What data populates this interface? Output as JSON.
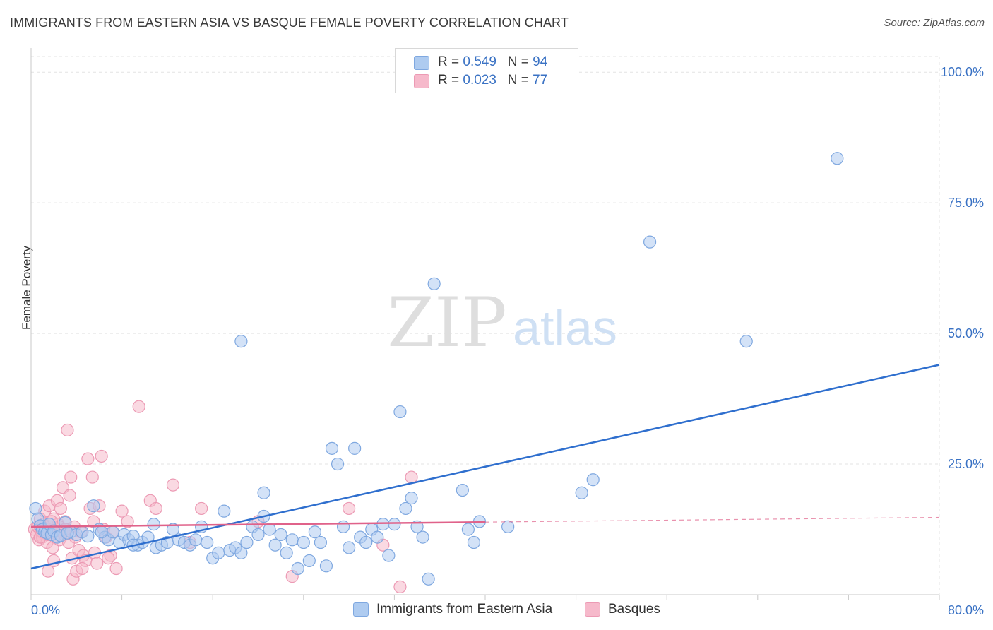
{
  "title": "IMMIGRANTS FROM EASTERN ASIA VS BASQUE FEMALE POVERTY CORRELATION CHART",
  "source": "Source: ZipAtlas.com",
  "watermark": {
    "zip": "ZIP",
    "atlas": "atlas"
  },
  "legend": {
    "rows": [
      {
        "r_label": "R = ",
        "r_value": "0.549",
        "n_label": "N = ",
        "n_value": "94"
      },
      {
        "r_label": "R = ",
        "r_value": "0.023",
        "n_label": "N = ",
        "n_value": "77"
      }
    ]
  },
  "bottom_legend": [
    "Immigrants from Eastern Asia",
    "Basques"
  ],
  "colors": {
    "blue_fill": "#aecbf0",
    "blue_stroke": "#7fa8e0",
    "blue_line": "#2f6fce",
    "pink_fill": "#f6b9cb",
    "pink_stroke": "#ec9ab4",
    "pink_line": "#e0628a",
    "tick_text": "#3a72c4",
    "grid": "#e3e3e3"
  },
  "chart_data": {
    "type": "scatter",
    "title": "IMMIGRANTS FROM EASTERN ASIA VS BASQUE FEMALE POVERTY CORRELATION CHART",
    "xlabel": "",
    "ylabel": "Female Poverty",
    "xlim": [
      0,
      80
    ],
    "ylim": [
      0,
      103
    ],
    "x_tick_labels": [
      "0.0%",
      "80.0%"
    ],
    "y_ticks": [
      25,
      50,
      75,
      100
    ],
    "y_tick_labels": [
      "25.0%",
      "50.0%",
      "75.0%",
      "100.0%"
    ],
    "grid": true,
    "legend_position": "top-center",
    "series": [
      {
        "name": "Immigrants from Eastern Asia",
        "r": 0.549,
        "n": 94,
        "trend": {
          "x": [
            0,
            80
          ],
          "y": [
            5.0,
            44.0
          ]
        },
        "points": [
          [
            0.4,
            16.5
          ],
          [
            0.6,
            14.5
          ],
          [
            0.8,
            13.2
          ],
          [
            1.0,
            12.5
          ],
          [
            1.2,
            12.0
          ],
          [
            1.4,
            11.8
          ],
          [
            1.6,
            13.5
          ],
          [
            1.8,
            11.5
          ],
          [
            2.0,
            12.2
          ],
          [
            2.3,
            11.0
          ],
          [
            2.6,
            11.3
          ],
          [
            3.0,
            13.8
          ],
          [
            3.5,
            12.0
          ],
          [
            4.0,
            11.5
          ],
          [
            4.5,
            12.0
          ],
          [
            5.0,
            11.2
          ],
          [
            5.5,
            17.0
          ],
          [
            6.0,
            12.5
          ],
          [
            6.5,
            11.0
          ],
          [
            6.8,
            10.5
          ],
          [
            7.2,
            12.0
          ],
          [
            7.8,
            10.0
          ],
          [
            8.2,
            11.5
          ],
          [
            8.6,
            10.5
          ],
          [
            9.0,
            11.2
          ],
          [
            9.4,
            9.5
          ],
          [
            9.8,
            10.0
          ],
          [
            10.3,
            11.0
          ],
          [
            10.8,
            13.5
          ],
          [
            11.0,
            9.0
          ],
          [
            11.5,
            9.5
          ],
          [
            12.0,
            10.0
          ],
          [
            12.5,
            12.5
          ],
          [
            13.0,
            10.5
          ],
          [
            13.5,
            10.0
          ],
          [
            14.0,
            9.5
          ],
          [
            14.5,
            10.5
          ],
          [
            15.0,
            13.0
          ],
          [
            15.5,
            10.0
          ],
          [
            16.0,
            7.0
          ],
          [
            16.5,
            8.0
          ],
          [
            17.0,
            16.0
          ],
          [
            17.5,
            8.5
          ],
          [
            18.0,
            9.0
          ],
          [
            18.5,
            8.0
          ],
          [
            19.0,
            10.0
          ],
          [
            19.5,
            13.0
          ],
          [
            20.0,
            11.5
          ],
          [
            20.5,
            15.0
          ],
          [
            21.0,
            12.5
          ],
          [
            21.5,
            9.5
          ],
          [
            22.0,
            11.5
          ],
          [
            22.5,
            8.0
          ],
          [
            23.0,
            10.5
          ],
          [
            23.5,
            5.0
          ],
          [
            24.0,
            10.0
          ],
          [
            24.5,
            6.5
          ],
          [
            25.0,
            12.0
          ],
          [
            25.5,
            10.0
          ],
          [
            26.0,
            5.5
          ],
          [
            26.5,
            28.0
          ],
          [
            27.0,
            25.0
          ],
          [
            27.5,
            13.0
          ],
          [
            28.0,
            9.0
          ],
          [
            28.5,
            28.0
          ],
          [
            29.0,
            11.0
          ],
          [
            29.5,
            10.0
          ],
          [
            30.0,
            12.5
          ],
          [
            30.5,
            11.0
          ],
          [
            31.0,
            13.5
          ],
          [
            31.5,
            7.5
          ],
          [
            32.0,
            13.5
          ],
          [
            32.5,
            35.0
          ],
          [
            33.0,
            16.5
          ],
          [
            33.5,
            18.5
          ],
          [
            34.0,
            13.0
          ],
          [
            34.5,
            11.0
          ],
          [
            35.0,
            3.0
          ],
          [
            35.5,
            59.5
          ],
          [
            38.0,
            20.0
          ],
          [
            38.5,
            12.5
          ],
          [
            39.0,
            10.0
          ],
          [
            39.5,
            14.0
          ],
          [
            42.0,
            13.0
          ],
          [
            48.5,
            19.5
          ],
          [
            49.5,
            22.0
          ],
          [
            18.5,
            48.5
          ],
          [
            54.5,
            67.5
          ],
          [
            63.0,
            48.5
          ],
          [
            71.0,
            83.5
          ],
          [
            20.5,
            19.5
          ],
          [
            9.0,
            9.5
          ],
          [
            6.2,
            12.0
          ],
          [
            3.2,
            11.8
          ]
        ]
      },
      {
        "name": "Basques",
        "r": 0.023,
        "n": 77,
        "trend": {
          "x": [
            0,
            40
          ],
          "y": [
            13.0,
            13.9
          ]
        },
        "trend_dashed": {
          "x": [
            40,
            80
          ],
          "y": [
            13.9,
            14.8
          ]
        },
        "points": [
          [
            0.3,
            12.5
          ],
          [
            0.5,
            11.5
          ],
          [
            0.6,
            13.0
          ],
          [
            0.7,
            10.5
          ],
          [
            0.8,
            14.5
          ],
          [
            0.9,
            12.0
          ],
          [
            1.0,
            11.0
          ],
          [
            1.1,
            13.5
          ],
          [
            1.2,
            16.0
          ],
          [
            1.3,
            12.5
          ],
          [
            1.4,
            10.0
          ],
          [
            1.5,
            11.5
          ],
          [
            1.6,
            17.0
          ],
          [
            1.7,
            13.0
          ],
          [
            1.8,
            12.0
          ],
          [
            1.9,
            9.0
          ],
          [
            2.0,
            14.5
          ],
          [
            2.1,
            11.0
          ],
          [
            2.2,
            12.5
          ],
          [
            2.3,
            18.0
          ],
          [
            2.4,
            13.5
          ],
          [
            2.5,
            10.5
          ],
          [
            2.6,
            16.5
          ],
          [
            2.7,
            12.0
          ],
          [
            2.8,
            20.5
          ],
          [
            2.9,
            11.5
          ],
          [
            3.0,
            14.0
          ],
          [
            3.1,
            12.5
          ],
          [
            3.2,
            31.5
          ],
          [
            3.3,
            10.0
          ],
          [
            3.4,
            19.0
          ],
          [
            3.5,
            22.5
          ],
          [
            3.6,
            7.0
          ],
          [
            3.7,
            3.0
          ],
          [
            3.8,
            13.0
          ],
          [
            3.9,
            11.0
          ],
          [
            4.0,
            4.5
          ],
          [
            4.2,
            8.5
          ],
          [
            4.4,
            12.0
          ],
          [
            4.6,
            7.5
          ],
          [
            4.8,
            6.5
          ],
          [
            5.0,
            26.0
          ],
          [
            5.2,
            16.5
          ],
          [
            5.4,
            22.5
          ],
          [
            5.6,
            8.0
          ],
          [
            5.8,
            6.0
          ],
          [
            6.0,
            17.0
          ],
          [
            6.2,
            26.5
          ],
          [
            6.4,
            12.5
          ],
          [
            6.6,
            11.0
          ],
          [
            7.0,
            7.5
          ],
          [
            7.5,
            5.0
          ],
          [
            8.0,
            16.0
          ],
          [
            8.5,
            14.0
          ],
          [
            9.5,
            36.0
          ],
          [
            10.5,
            18.0
          ],
          [
            11.0,
            16.5
          ],
          [
            12.5,
            21.0
          ],
          [
            14.0,
            10.0
          ],
          [
            15.0,
            16.5
          ],
          [
            20.0,
            14.0
          ],
          [
            23.0,
            3.5
          ],
          [
            28.0,
            16.5
          ],
          [
            31.0,
            9.5
          ],
          [
            32.5,
            1.5
          ],
          [
            33.5,
            22.5
          ],
          [
            1.5,
            4.5
          ],
          [
            2.0,
            6.5
          ],
          [
            4.5,
            5.0
          ],
          [
            5.5,
            14.0
          ],
          [
            6.8,
            7.0
          ],
          [
            7.2,
            12.0
          ],
          [
            2.5,
            13.0
          ],
          [
            1.0,
            12.0
          ],
          [
            3.0,
            12.5
          ],
          [
            0.8,
            11.0
          ],
          [
            1.8,
            14.0
          ]
        ]
      }
    ]
  }
}
